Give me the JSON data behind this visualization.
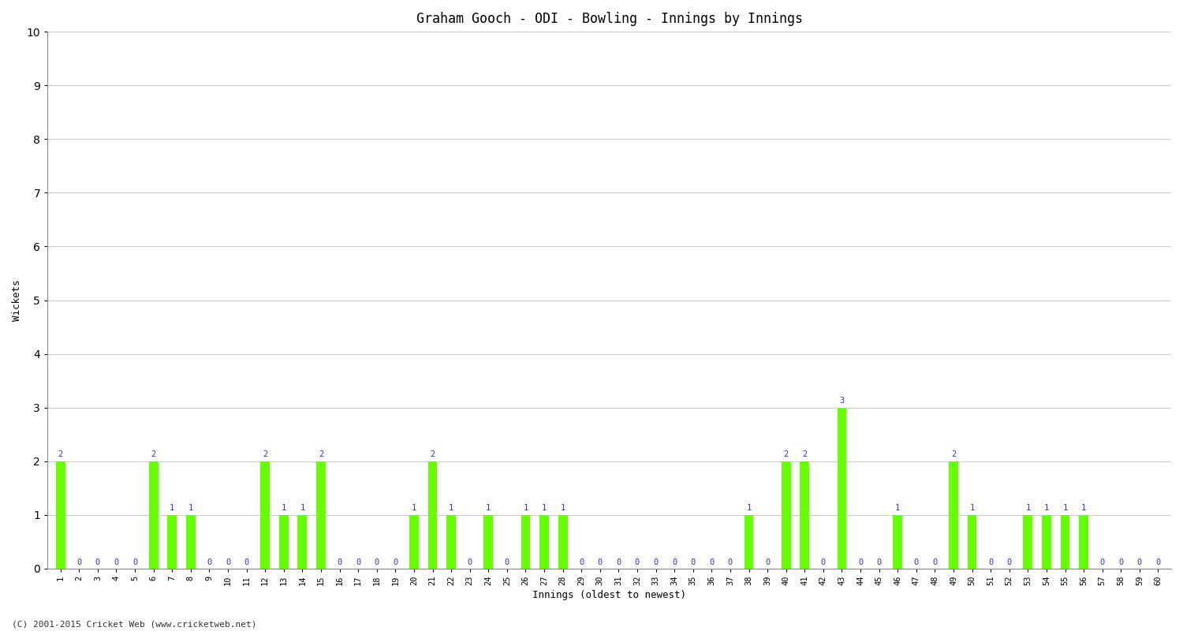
{
  "title": "Graham Gooch - ODI - Bowling - Innings by Innings",
  "xlabel": "Innings (oldest to newest)",
  "ylabel": "Wickets",
  "ylim": [
    0,
    10
  ],
  "yticks": [
    0,
    1,
    2,
    3,
    4,
    5,
    6,
    7,
    8,
    9,
    10
  ],
  "bar_color": "#66FF00",
  "label_color": "#3333CC",
  "background_color": "#FFFFFF",
  "plot_bg_color": "#FFFFFF",
  "grid_color": "#CCCCCC",
  "footer": "(C) 2001-2015 Cricket Web (www.cricketweb.net)",
  "innings": [
    1,
    2,
    3,
    4,
    5,
    6,
    7,
    8,
    9,
    10,
    11,
    12,
    13,
    14,
    15,
    16,
    17,
    18,
    19,
    20,
    21,
    22,
    23,
    24,
    25,
    26,
    27,
    28,
    29,
    30,
    31,
    32,
    33,
    34,
    35,
    36,
    37,
    38,
    39,
    40,
    41,
    42,
    43,
    44,
    45,
    46,
    47,
    48,
    49,
    50,
    51,
    52,
    53,
    54,
    55,
    56,
    57,
    58,
    59,
    60
  ],
  "wickets": [
    2,
    0,
    0,
    0,
    0,
    2,
    1,
    1,
    0,
    0,
    0,
    2,
    1,
    1,
    2,
    0,
    0,
    0,
    0,
    1,
    2,
    1,
    0,
    1,
    0,
    1,
    1,
    1,
    0,
    0,
    0,
    0,
    0,
    0,
    0,
    0,
    0,
    1,
    0,
    2,
    2,
    0,
    3,
    0,
    0,
    1,
    0,
    0,
    2,
    1,
    0,
    0,
    1,
    1,
    1,
    1,
    0,
    0,
    0,
    0
  ]
}
